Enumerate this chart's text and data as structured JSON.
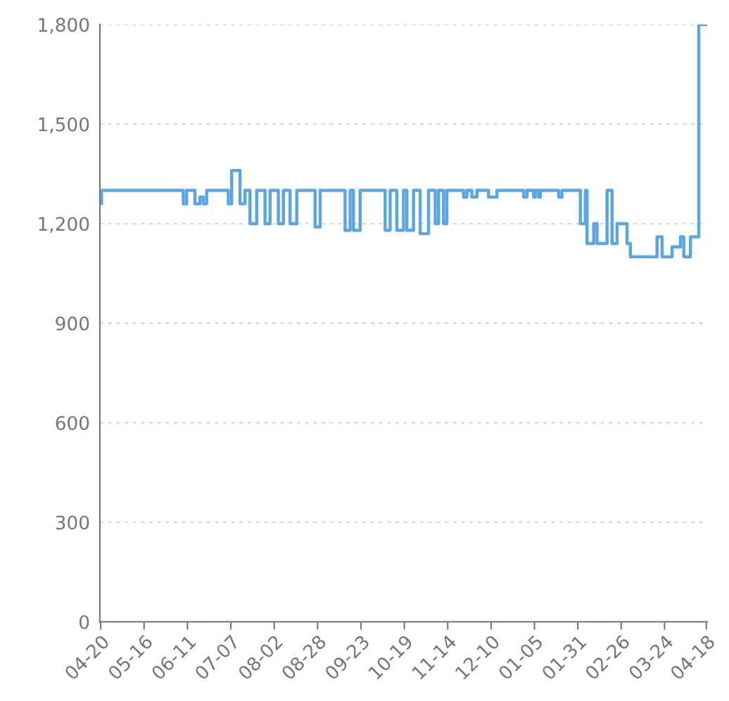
{
  "chart_data": {
    "type": "step",
    "categories": [
      "04-20",
      null,
      null,
      null,
      null,
      null,
      null,
      null,
      null,
      null,
      null,
      null,
      null,
      null,
      null,
      null,
      null,
      null,
      null,
      null,
      null,
      null,
      null,
      null,
      null,
      null,
      "05-16",
      null,
      null,
      null,
      null,
      null,
      null,
      null,
      null,
      null,
      null,
      null,
      null,
      null,
      null,
      null,
      null,
      null,
      null,
      null,
      null,
      null,
      null,
      null,
      null,
      null,
      "06-11",
      null,
      null,
      null,
      null,
      null,
      null,
      null,
      null,
      null,
      null,
      null,
      null,
      null,
      null,
      null,
      null,
      null,
      null,
      null,
      null,
      null,
      null,
      null,
      null,
      null,
      "07-07",
      null,
      null,
      null,
      null,
      null,
      null,
      null,
      null,
      null,
      null,
      null,
      null,
      null,
      null,
      null,
      null,
      null,
      null,
      null,
      null,
      null,
      null,
      null,
      null,
      null,
      "08-02",
      null,
      null,
      null,
      null,
      null,
      null,
      null,
      null,
      null,
      null,
      null,
      null,
      null,
      null,
      null,
      null,
      null,
      null,
      null,
      null,
      null,
      null,
      null,
      null,
      null,
      "08-28",
      null,
      null,
      null,
      null,
      null,
      null,
      null,
      null,
      null,
      null,
      null,
      null,
      null,
      null,
      null,
      null,
      null,
      null,
      null,
      null,
      null,
      null,
      null,
      null,
      null,
      "09-23",
      null,
      null,
      null,
      null,
      null,
      null,
      null,
      null,
      null,
      null,
      null,
      null,
      null,
      null,
      null,
      null,
      null,
      null,
      null,
      null,
      null,
      null,
      null,
      null,
      null,
      "10-19",
      null,
      null,
      null,
      null,
      null,
      null,
      null,
      null,
      null,
      null,
      null,
      null,
      null,
      null,
      null,
      null,
      null,
      null,
      null,
      null,
      null,
      null,
      null,
      null,
      null,
      "11-14",
      null,
      null,
      null,
      null,
      null,
      null,
      null,
      null,
      null,
      null,
      null,
      null,
      null,
      null,
      null,
      null,
      null,
      null,
      null,
      null,
      null,
      null,
      null,
      null,
      null,
      "12-10",
      null,
      null,
      null,
      null,
      null,
      null,
      null,
      null,
      null,
      null,
      null,
      null,
      null,
      null,
      null,
      null,
      null,
      null,
      null,
      null,
      null,
      null,
      null,
      null,
      null,
      "01-05",
      null,
      null,
      null,
      null,
      null,
      null,
      null,
      null,
      null,
      null,
      null,
      null,
      null,
      null,
      null,
      null,
      null,
      null,
      null,
      null,
      null,
      null,
      null,
      null,
      null,
      "01-31",
      null,
      null,
      null,
      null,
      null,
      null,
      null,
      null,
      null,
      null,
      null,
      null,
      null,
      null,
      null,
      null,
      null,
      null,
      null,
      null,
      null,
      null,
      null,
      null,
      null,
      "02-26",
      null,
      null,
      null,
      null,
      null,
      null,
      null,
      null,
      null,
      null,
      null,
      null,
      null,
      null,
      null,
      null,
      null,
      null,
      null,
      null,
      null,
      null,
      null,
      null,
      null,
      "03-24",
      null,
      null,
      null,
      null,
      null,
      null,
      null,
      null,
      null,
      null,
      null,
      null,
      null,
      null,
      null,
      null,
      null,
      null,
      null,
      null,
      null,
      null,
      null,
      null,
      "04-18"
    ],
    "series": [
      {
        "color": "#5aa5e6",
        "values": [
          1260,
          1300,
          1300,
          1300,
          1300,
          1300,
          1300,
          1300,
          1300,
          1300,
          1300,
          1300,
          1300,
          1300,
          1300,
          1300,
          1300,
          1300,
          1300,
          1300,
          1300,
          1300,
          1300,
          1300,
          1300,
          1300,
          1300,
          1300,
          1300,
          1300,
          1300,
          1300,
          1300,
          1300,
          1300,
          1300,
          1300,
          1300,
          1300,
          1300,
          1300,
          1300,
          1300,
          1300,
          1300,
          1300,
          1300,
          1300,
          1300,
          1300,
          1260,
          1260,
          1300,
          1300,
          1300,
          1300,
          1300,
          1260,
          1260,
          1260,
          1280,
          1280,
          1260,
          1260,
          1300,
          1300,
          1300,
          1300,
          1300,
          1300,
          1300,
          1300,
          1300,
          1300,
          1300,
          1300,
          1300,
          1260,
          1260,
          1360,
          1360,
          1360,
          1360,
          1360,
          1260,
          1260,
          1260,
          1300,
          1300,
          1300,
          1200,
          1200,
          1200,
          1200,
          1300,
          1300,
          1300,
          1300,
          1300,
          1200,
          1200,
          1200,
          1300,
          1300,
          1300,
          1300,
          1300,
          1200,
          1200,
          1200,
          1300,
          1300,
          1300,
          1300,
          1200,
          1200,
          1200,
          1200,
          1300,
          1300,
          1300,
          1300,
          1300,
          1300,
          1300,
          1300,
          1300,
          1300,
          1300,
          1190,
          1190,
          1190,
          1300,
          1300,
          1300,
          1300,
          1300,
          1300,
          1300,
          1300,
          1300,
          1300,
          1300,
          1300,
          1300,
          1300,
          1300,
          1180,
          1180,
          1180,
          1300,
          1300,
          1180,
          1180,
          1180,
          1180,
          1300,
          1300,
          1300,
          1300,
          1300,
          1300,
          1300,
          1300,
          1300,
          1300,
          1300,
          1300,
          1300,
          1300,
          1300,
          1180,
          1180,
          1180,
          1300,
          1300,
          1300,
          1300,
          1180,
          1180,
          1180,
          1180,
          1300,
          1300,
          1180,
          1180,
          1180,
          1180,
          1300,
          1300,
          1300,
          1300,
          1170,
          1170,
          1170,
          1170,
          1170,
          1300,
          1300,
          1300,
          1300,
          1200,
          1200,
          1300,
          1300,
          1300,
          1200,
          1200,
          1300,
          1300,
          1300,
          1300,
          1300,
          1300,
          1300,
          1300,
          1300,
          1300,
          1280,
          1280,
          1300,
          1300,
          1300,
          1280,
          1280,
          1280,
          1300,
          1300,
          1300,
          1300,
          1300,
          1300,
          1300,
          1280,
          1280,
          1280,
          1280,
          1280,
          1300,
          1300,
          1300,
          1300,
          1300,
          1300,
          1300,
          1300,
          1300,
          1300,
          1300,
          1300,
          1300,
          1300,
          1300,
          1300,
          1280,
          1280,
          1300,
          1300,
          1300,
          1300,
          1280,
          1300,
          1300,
          1280,
          1300,
          1300,
          1300,
          1300,
          1300,
          1300,
          1300,
          1300,
          1300,
          1300,
          1300,
          1280,
          1280,
          1300,
          1300,
          1300,
          1300,
          1300,
          1300,
          1300,
          1300,
          1300,
          1300,
          1300,
          1200,
          1200,
          1200,
          1300,
          1140,
          1140,
          1140,
          1140,
          1200,
          1200,
          1140,
          1140,
          1140,
          1140,
          1140,
          1140,
          1300,
          1300,
          1300,
          1140,
          1140,
          1140,
          1200,
          1200,
          1200,
          1200,
          1200,
          1200,
          1140,
          1140,
          1100,
          1100,
          1100,
          1100,
          1100,
          1100,
          1100,
          1100,
          1100,
          1100,
          1100,
          1100,
          1100,
          1100,
          1100,
          1100,
          1160,
          1160,
          1160,
          1100,
          1100,
          1100,
          1100,
          1100,
          1100,
          1130,
          1130,
          1130,
          1130,
          1130,
          1160,
          1160,
          1100,
          1100,
          1100,
          1100,
          1160,
          1160,
          1160,
          1160,
          1160,
          1800,
          1800,
          1800,
          1800,
          1800
        ]
      }
    ],
    "ylim": [
      0,
      1800
    ],
    "yticks": [
      0,
      300,
      600,
      900,
      {
        "value": 1200,
        "label": "1,200"
      },
      {
        "value": 1500,
        "label": "1,500"
      },
      {
        "value": 1800,
        "label": "1,800"
      }
    ],
    "grid": "y",
    "marker": "none",
    "line_style": "solid"
  }
}
